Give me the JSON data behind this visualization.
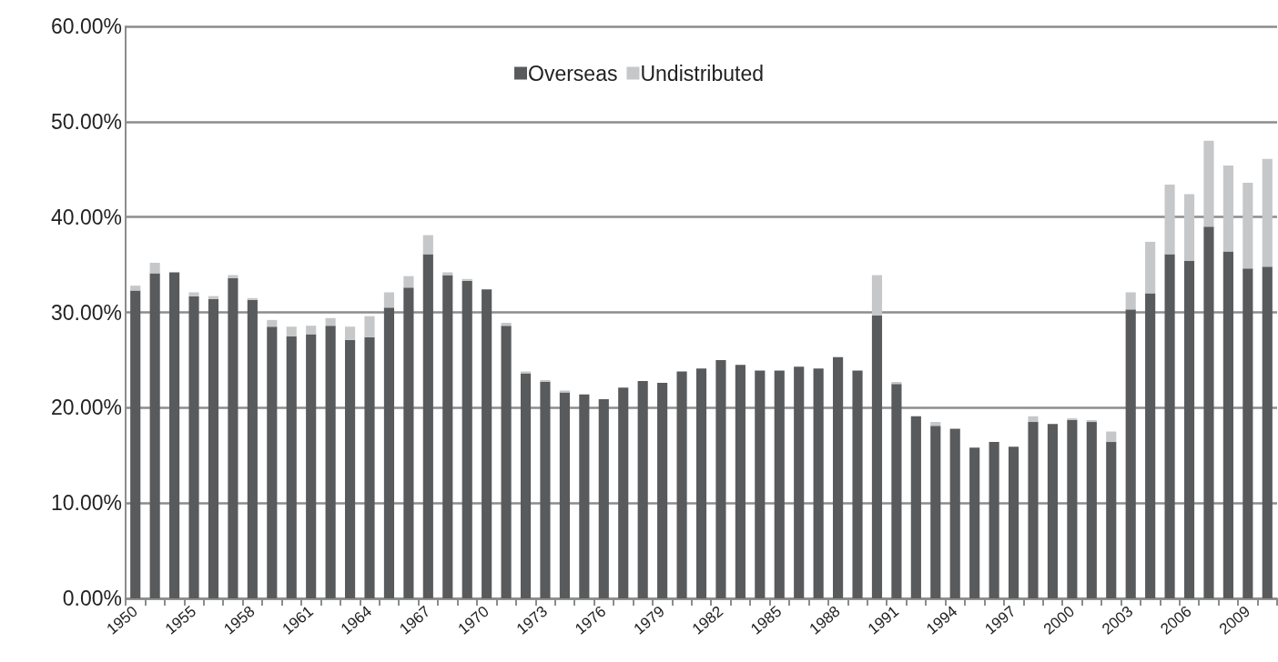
{
  "chart_data": {
    "type": "bar",
    "stacked": true,
    "categories": [
      "1950",
      null,
      null,
      "1955",
      null,
      null,
      "1958",
      null,
      null,
      "1961",
      null,
      null,
      "1964",
      null,
      null,
      "1967",
      null,
      null,
      "1970",
      null,
      null,
      "1973",
      null,
      null,
      "1976",
      null,
      null,
      "1979",
      null,
      null,
      "1982",
      null,
      null,
      "1985",
      null,
      null,
      "1988",
      null,
      null,
      "1991",
      null,
      null,
      "1994",
      null,
      null,
      "1997",
      null,
      null,
      "2000",
      null,
      null,
      "2003",
      null,
      null,
      "2006",
      null,
      null,
      "2009",
      null
    ],
    "series": [
      {
        "name": "Overseas",
        "color": "#595a5c",
        "values": [
          32.3,
          34.1,
          34.2,
          31.7,
          31.4,
          33.6,
          31.3,
          28.5,
          27.5,
          27.7,
          28.6,
          27.1,
          27.4,
          30.5,
          32.6,
          36.1,
          33.9,
          33.3,
          32.4,
          28.6,
          23.6,
          22.7,
          21.6,
          21.4,
          20.9,
          22.1,
          22.8,
          22.6,
          23.8,
          24.1,
          25.0,
          24.5,
          23.9,
          23.9,
          24.3,
          24.1,
          25.3,
          23.9,
          29.7,
          22.5,
          19.1,
          18.1,
          17.8,
          15.8,
          16.4,
          15.9,
          18.5,
          18.3,
          18.7,
          18.5,
          16.4,
          30.3,
          32.0,
          36.1,
          35.4,
          39.0,
          36.4,
          34.6,
          34.8
        ]
      },
      {
        "name": "Undistributed",
        "color": "#c6c7c9",
        "values": [
          0.5,
          1.1,
          0,
          0.4,
          0.3,
          0.3,
          0.2,
          0.7,
          1.0,
          0.9,
          0.8,
          1.4,
          2.2,
          1.6,
          1.2,
          2.0,
          0.3,
          0.2,
          0,
          0.3,
          0.2,
          0.2,
          0.2,
          0,
          0,
          0,
          0,
          0,
          0,
          0,
          0,
          0,
          0,
          0,
          0,
          0,
          0,
          0,
          4.2,
          0.2,
          0,
          0.4,
          0,
          0,
          0,
          0,
          0.6,
          0,
          0.2,
          0.2,
          1.1,
          1.8,
          5.4,
          7.3,
          7.0,
          9.0,
          9.0,
          9.0,
          11.3
        ]
      }
    ],
    "ylim": [
      0,
      60
    ],
    "yticks": [
      {
        "value": 0,
        "label": "0.00%"
      },
      {
        "value": 10,
        "label": "10.00%"
      },
      {
        "value": 20,
        "label": "20.00%"
      },
      {
        "value": 30,
        "label": "30.00%"
      },
      {
        "value": 40,
        "label": "40.00%"
      },
      {
        "value": 50,
        "label": "50.00%"
      },
      {
        "value": 60,
        "label": "60.00%"
      }
    ],
    "grid": "y",
    "legend": "top"
  }
}
